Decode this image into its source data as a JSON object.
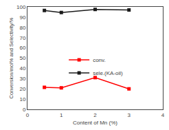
{
  "chart_data": {
    "type": "line",
    "x": [
      0.5,
      1.0,
      2.0,
      3.0
    ],
    "series": [
      {
        "name": "conv.",
        "color": "#ff0000",
        "values": [
          21.5,
          21.0,
          31.0,
          20.0
        ]
      },
      {
        "name": "sele.(KA-oil)",
        "color": "#1a1a1a",
        "values": [
          96.5,
          94.5,
          97.5,
          97.0
        ]
      }
    ],
    "xlabel": "Content of Mn (%)",
    "ylabel": "Conversion/mol% and Selectivity/%",
    "xlim": [
      0,
      4
    ],
    "ylim": [
      0,
      100
    ],
    "xticks": [
      0,
      1,
      2,
      3,
      4
    ],
    "yticks": [
      0,
      10,
      20,
      30,
      40,
      50,
      60,
      70,
      80,
      90,
      100
    ],
    "marker": "square",
    "legend": "center",
    "grid": false
  }
}
